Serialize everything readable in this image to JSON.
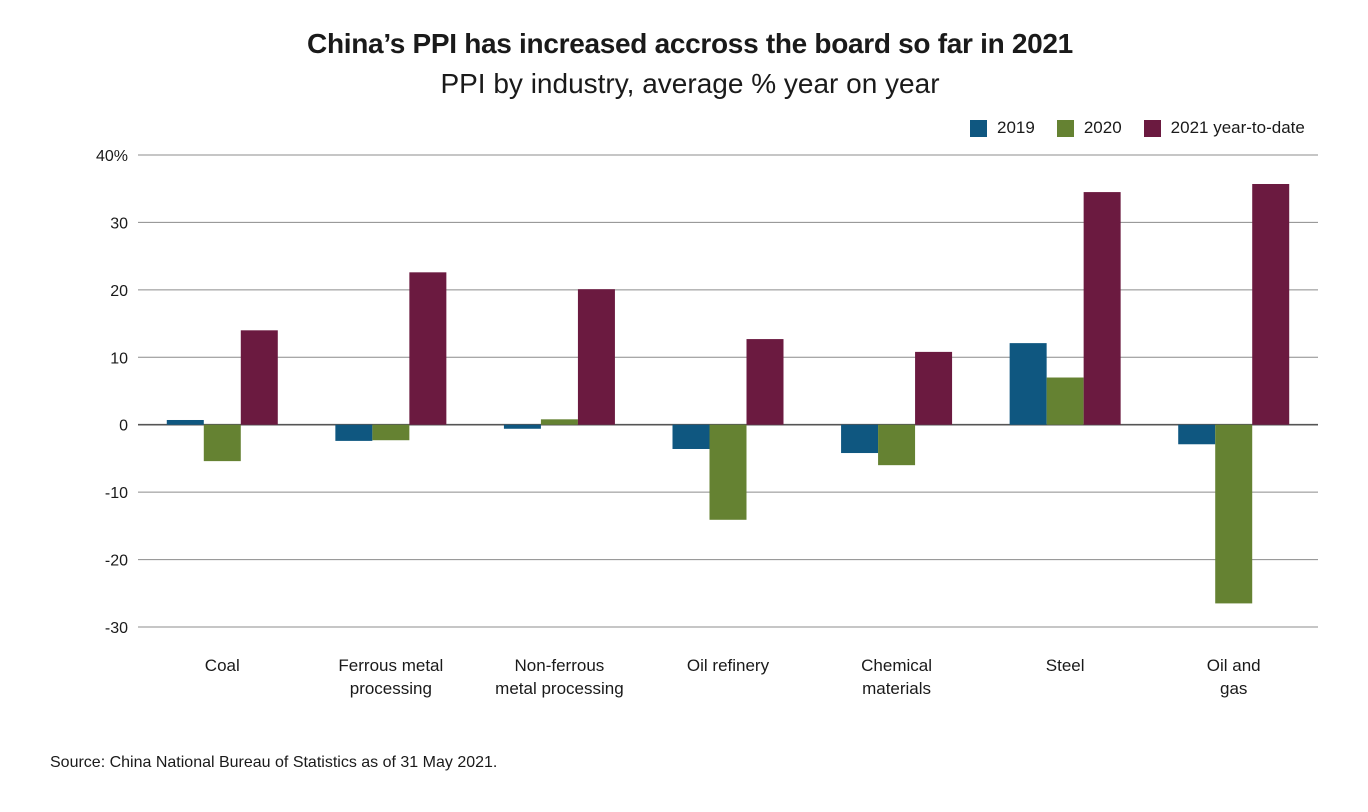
{
  "title": "China’s PPI has increased accross the board so far in 2021",
  "subtitle": "PPI by industry, average % year on year",
  "source": "Source: China National Bureau of Statistics as of 31 May 2021.",
  "chart_data": {
    "type": "bar",
    "title": "China’s PPI has increased accross the board so far in 2021",
    "subtitle": "PPI by industry, average % year on year",
    "categories": [
      [
        "Coal"
      ],
      [
        "Ferrous metal",
        "processing"
      ],
      [
        "Non-ferrous",
        "metal processing"
      ],
      [
        "Oil refinery"
      ],
      [
        "Chemical",
        "materials"
      ],
      [
        "Steel"
      ],
      [
        "Oil and",
        "gas"
      ]
    ],
    "series": [
      {
        "name": "2019",
        "color": "#0f5780",
        "values": [
          0.7,
          -2.4,
          -0.6,
          -3.6,
          -4.2,
          12.1,
          -2.9
        ]
      },
      {
        "name": "2020",
        "color": "#658232",
        "values": [
          -5.4,
          -2.3,
          0.8,
          -14.1,
          -6.0,
          7.0,
          -26.5
        ]
      },
      {
        "name": "2021 year-to-date",
        "color": "#6b1a40",
        "values": [
          14.0,
          22.6,
          20.1,
          12.7,
          10.8,
          34.5,
          35.7
        ]
      }
    ],
    "ylim": [
      -30,
      40
    ],
    "yticks": [
      -30,
      -20,
      -10,
      0,
      10,
      20,
      30,
      40
    ],
    "ytick_labels": [
      "-30",
      "-20",
      "-10",
      "0",
      "10",
      "20",
      "30",
      "40%"
    ],
    "grid": true,
    "legend_position": "top-right"
  }
}
